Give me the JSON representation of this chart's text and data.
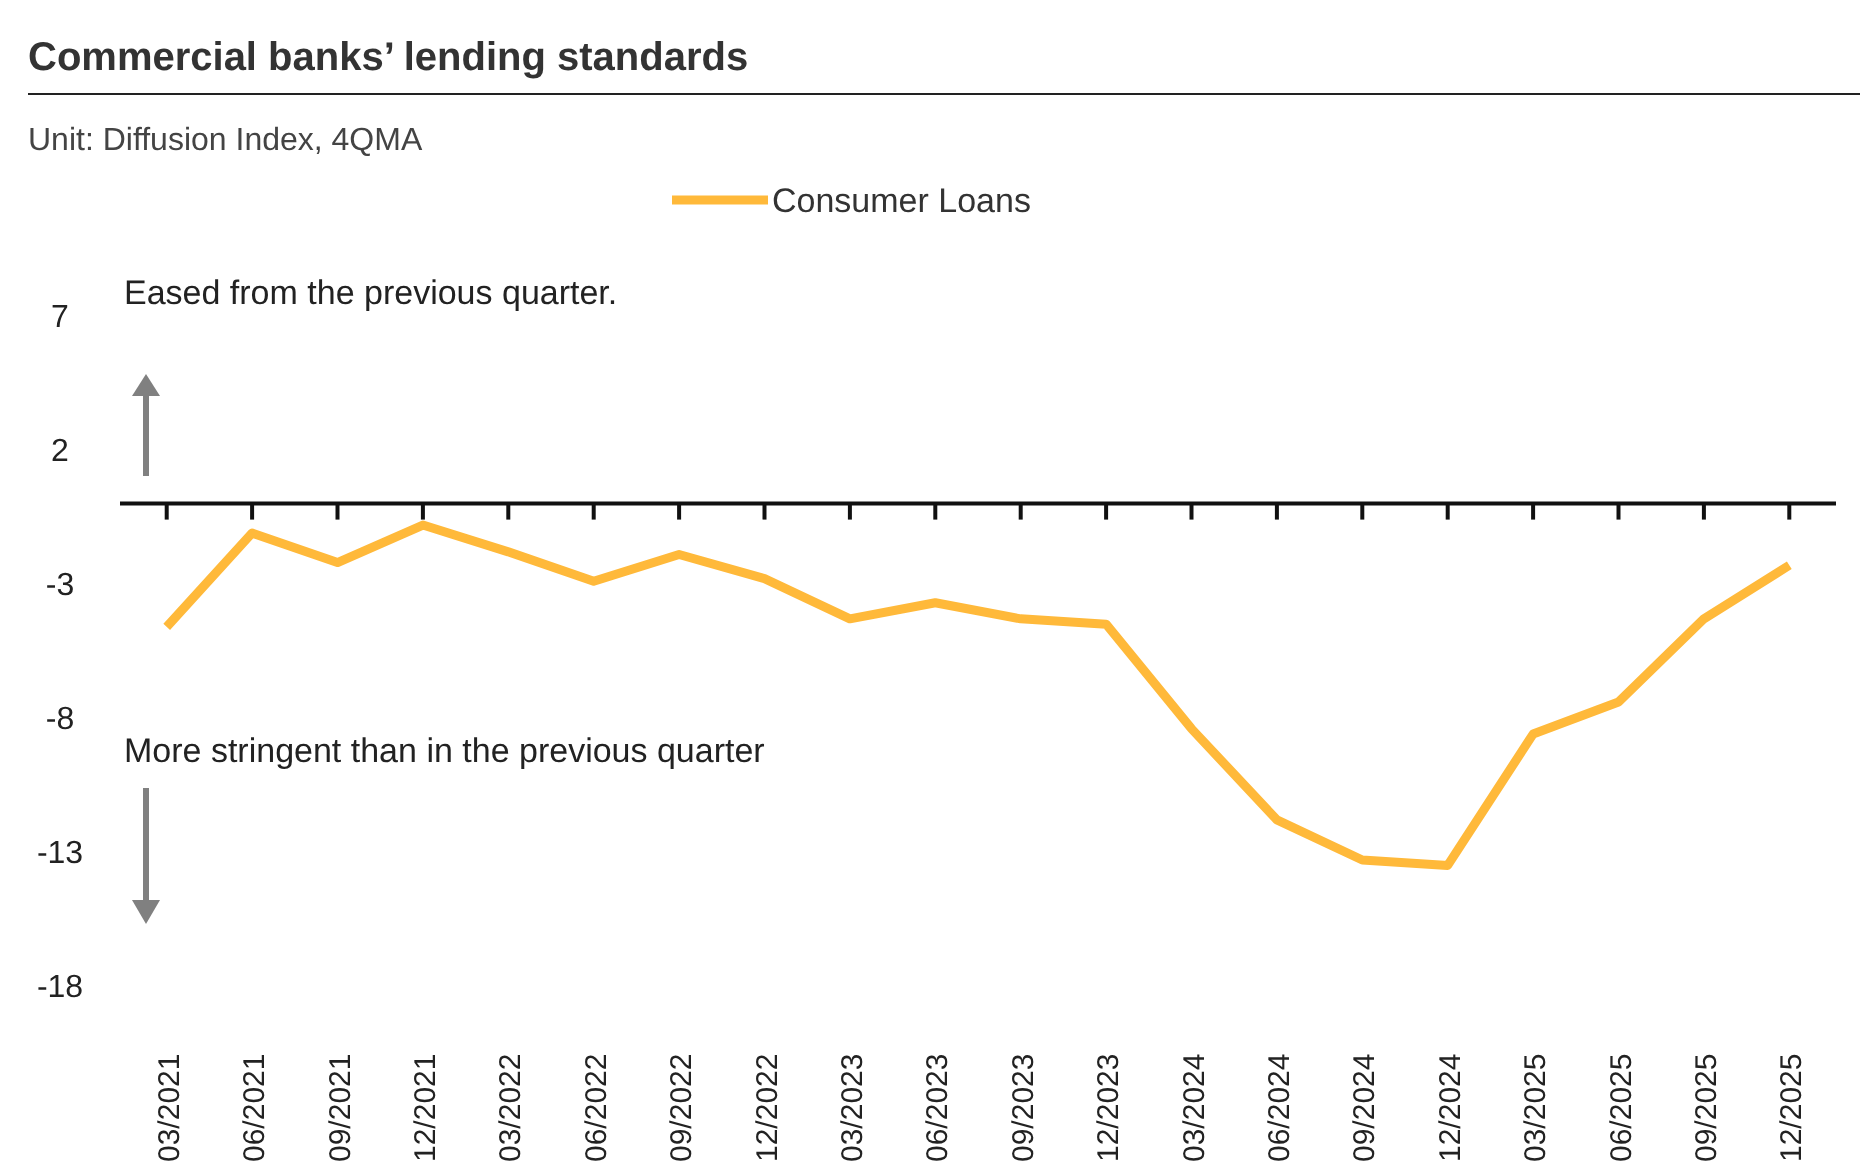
{
  "chart_data": {
    "type": "line",
    "title": "Commercial banks’ lending standards",
    "subtitle": "Unit: Diffusion Index, 4QMA",
    "categories": [
      "03/2021",
      "06/2021",
      "09/2021",
      "12/2021",
      "03/2022",
      "06/2022",
      "09/2022",
      "12/2022",
      "03/2023",
      "06/2023",
      "09/2023",
      "12/2023",
      "03/2024",
      "06/2024",
      "09/2024",
      "12/2024",
      "03/2025",
      "06/2025",
      "09/2025",
      "12/2025"
    ],
    "series": [
      {
        "name": "Consumer Loans",
        "color": "#ffb93a",
        "values": [
          -4.6,
          -1.1,
          -2.2,
          -0.8,
          -1.8,
          -2.9,
          -1.9,
          -2.8,
          -4.3,
          -3.7,
          -4.3,
          -4.5,
          -8.4,
          -11.8,
          -13.3,
          -13.5,
          -8.6,
          -7.4,
          -4.3,
          -2.3
        ]
      }
    ],
    "ylim": [
      -18,
      7
    ],
    "yticks": [
      7,
      2,
      -3,
      -8,
      -13,
      -18
    ],
    "grid": false,
    "legend": "top",
    "marker": "none",
    "line_style": "solid",
    "annotations": [
      "Eased from the previous quarter.",
      "More stringent than in the previous quarter"
    ]
  }
}
